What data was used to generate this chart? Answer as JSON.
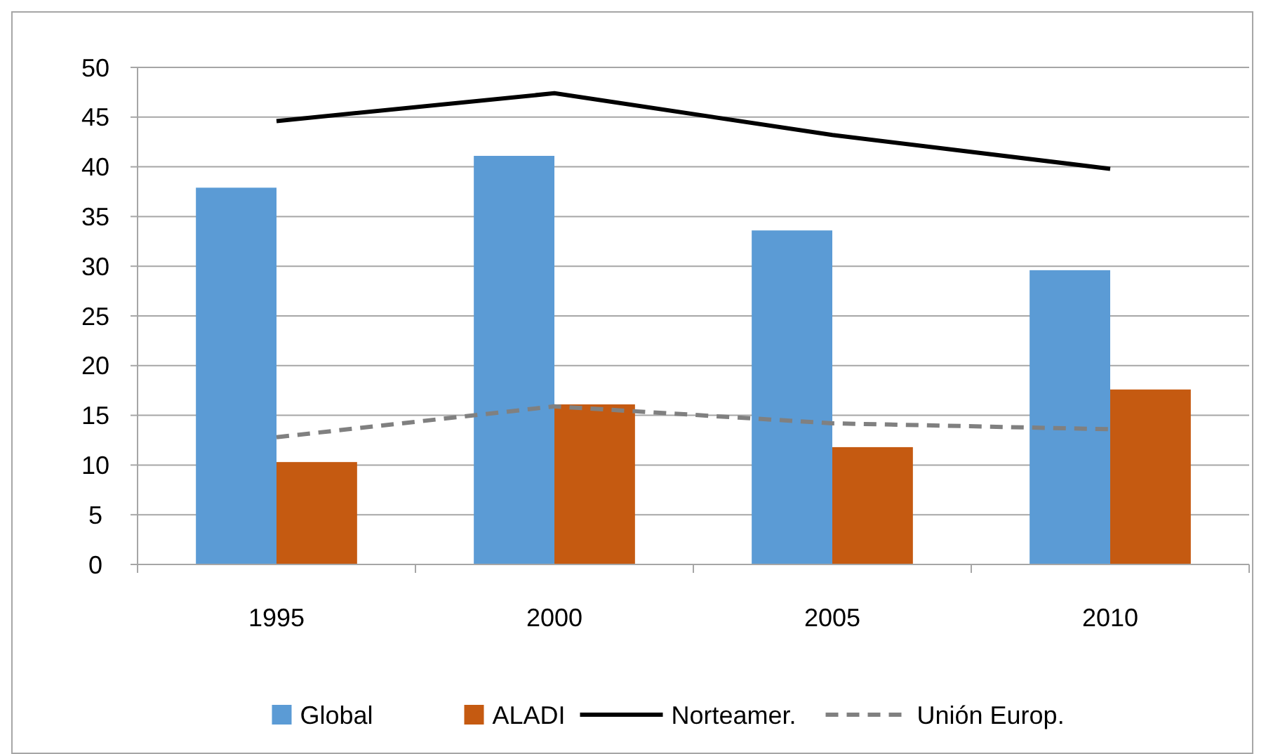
{
  "chart_data": {
    "type": "bar",
    "categories": [
      "1995",
      "2000",
      "2005",
      "2010"
    ],
    "series": [
      {
        "name": "Global",
        "color": "#5b9bd5",
        "values": [
          37.9,
          41.1,
          33.6,
          29.6
        ]
      },
      {
        "name": "ALADI",
        "color": "#c55a11",
        "values": [
          10.3,
          16.1,
          11.8,
          17.6
        ]
      },
      {
        "name": "Norteamer.",
        "type": "line",
        "color": "#000000",
        "line_style": "solid",
        "values": [
          44.6,
          47.4,
          43.2,
          39.8
        ]
      },
      {
        "name": "Unión Europ.",
        "type": "line",
        "color": "#808080",
        "line_style": "dashed",
        "values": [
          12.8,
          15.9,
          14.2,
          13.6
        ]
      }
    ],
    "ylim": [
      0,
      50
    ],
    "yticks": [
      0,
      5,
      10,
      15,
      20,
      25,
      30,
      35,
      40,
      45,
      50
    ],
    "grid": "y",
    "legend": "bottom",
    "marker": "none"
  }
}
